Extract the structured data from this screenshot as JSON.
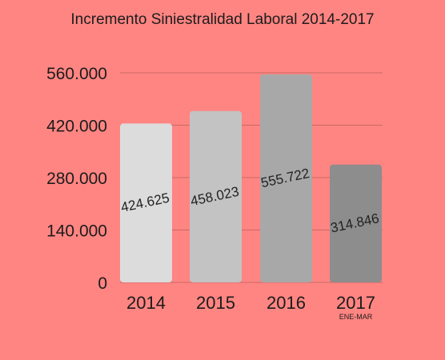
{
  "chart_data": {
    "type": "bar",
    "title": "Incremento Siniestralidad Laboral 2014-2017",
    "xlabel": "",
    "ylabel": "",
    "categories": [
      "2014",
      "2015",
      "2016",
      "2017"
    ],
    "category_sublabels": [
      "",
      "",
      "",
      "ENE-MAR"
    ],
    "values": [
      424625,
      458023,
      555722,
      314846
    ],
    "value_labels": [
      "424.625",
      "458.023",
      "555.722",
      "314.846"
    ],
    "bar_colors": [
      "#dcdcdc",
      "#c3c3c3",
      "#a8a8a8",
      "#8d8d8d"
    ],
    "ylim": [
      0,
      560000
    ],
    "yticks": [
      0,
      140000,
      280000,
      420000,
      560000
    ],
    "ytick_labels": [
      "0",
      "140.000",
      "280.000",
      "420.000",
      "560.000"
    ],
    "grid": true,
    "legend": "none",
    "background": "#ff8582",
    "grid_color": "#c96966"
  }
}
